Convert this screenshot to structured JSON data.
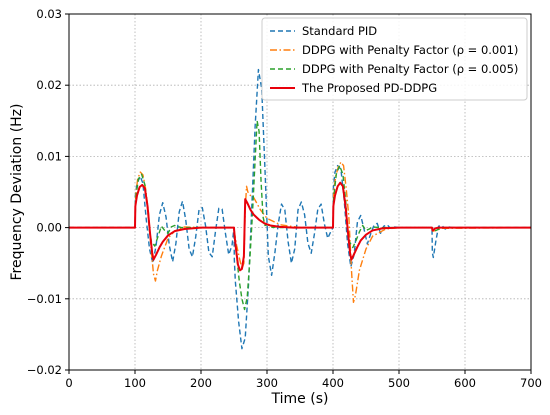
{
  "chart_data": {
    "type": "line",
    "xlabel": "Time (s)",
    "ylabel": "Frequency Deviation (Hz)",
    "xlim": [
      0,
      700
    ],
    "ylim": [
      -0.02,
      0.03
    ],
    "x_ticks": [
      0,
      100,
      200,
      300,
      400,
      500,
      600,
      700
    ],
    "x_tick_labels": [
      "0",
      "100",
      "200",
      "300",
      "400",
      "500",
      "600",
      "700"
    ],
    "y_ticks": [
      -0.02,
      -0.01,
      0.0,
      0.01,
      0.02,
      0.03
    ],
    "y_tick_labels": [
      "−0.02",
      "−0.01",
      "0.00",
      "0.01",
      "0.02",
      "0.03"
    ],
    "grid": true,
    "legend_position": "top-right",
    "series": [
      {
        "name": "Standard PID",
        "color": "#1f77b4",
        "style": "dashed",
        "x": [
          0,
          100,
          100.5,
          103,
          108,
          112,
          117,
          122,
          127,
          132,
          137,
          142,
          147,
          152,
          157,
          162,
          167,
          172,
          177,
          182,
          187,
          192,
          197,
          202,
          207,
          212,
          217,
          222,
          227,
          232,
          237,
          242,
          247,
          250,
          250.5,
          252,
          257,
          262,
          267,
          272,
          277,
          282,
          287,
          292,
          297,
          302,
          307,
          312,
          317,
          322,
          327,
          332,
          337,
          342,
          347,
          352,
          357,
          362,
          367,
          372,
          377,
          382,
          387,
          392,
          397,
          400,
          400.5,
          403,
          407,
          412,
          417,
          422,
          427,
          432,
          437,
          442,
          447,
          452,
          457,
          462,
          467,
          472,
          477,
          482,
          487,
          492,
          500,
          550,
          550.5,
          552,
          556,
          560,
          565,
          570,
          575,
          580,
          585,
          590,
          700
        ],
        "y": [
          0,
          0,
          0.0045,
          0.0062,
          0.0072,
          0.0062,
          0.0012,
          -0.003,
          -0.005,
          -0.0025,
          0.0018,
          0.0035,
          0.0015,
          -0.0025,
          -0.0048,
          -0.0022,
          0.0022,
          0.0037,
          0.001,
          -0.003,
          -0.0041,
          -0.0013,
          0.0025,
          0.0028,
          0.0002,
          -0.0035,
          -0.0041,
          -0.0005,
          0.0027,
          0.0026,
          -0.0008,
          -0.0038,
          -0.0025,
          0,
          -0.0045,
          -0.0075,
          -0.0132,
          -0.017,
          -0.0155,
          -0.008,
          0.003,
          0.0142,
          0.0222,
          0.0195,
          0.008,
          -0.004,
          -0.0067,
          -0.0035,
          0.0005,
          0.0033,
          0.0025,
          -0.002,
          -0.005,
          -0.003,
          0.0025,
          0.0036,
          0.0018,
          -0.0022,
          -0.0036,
          -0.0008,
          0.0026,
          0.0033,
          0.0005,
          -0.0015,
          -0.0005,
          0,
          0.0055,
          0.0078,
          0.0087,
          0.0082,
          0.0038,
          -0.0022,
          -0.0055,
          -0.0038,
          0.0008,
          0.0017,
          -0.0002,
          -0.0023,
          -0.0009,
          0.0003,
          0.0006,
          -0.0008,
          0.0002,
          0.0004,
          -0.0001,
          0.0001,
          0,
          0,
          -0.0035,
          -0.0042,
          -0.0018,
          0.0002,
          0.0003,
          -0.0002,
          0.0001,
          0,
          0,
          0,
          0
        ]
      },
      {
        "name": "DDPG with Penalty Factor (ρ = 0.001)",
        "color": "#ff7f0e",
        "style": "dashdot",
        "x": [
          0,
          100,
          101,
          104,
          108,
          112,
          116,
          120,
          124,
          128,
          131,
          134,
          140,
          150,
          160,
          175,
          200,
          250,
          251,
          254,
          258,
          262,
          265,
          267,
          269,
          271,
          275,
          280,
          290,
          300,
          320,
          350,
          400,
          401,
          404,
          408,
          412,
          416,
          420,
          424,
          428,
          431,
          434,
          440,
          450,
          460,
          480,
          500,
          550,
          551,
          556,
          565,
          700
        ],
        "y": [
          0,
          0,
          0.0045,
          0.0068,
          0.0078,
          0.0074,
          0.0055,
          0.0025,
          -0.0025,
          -0.0065,
          -0.0075,
          -0.006,
          -0.004,
          -0.0015,
          -0.0005,
          0.0001,
          0,
          0,
          -0.0008,
          -0.0025,
          -0.0042,
          -0.0058,
          -0.005,
          0.0025,
          0.0058,
          0.005,
          0.0045,
          0.0042,
          0.0025,
          0.0013,
          0.0004,
          0,
          0,
          0.005,
          0.0072,
          0.0085,
          0.0092,
          0.0087,
          0.0055,
          0.0015,
          -0.006,
          -0.0105,
          -0.0095,
          -0.006,
          -0.003,
          -0.0012,
          -0.0002,
          0,
          0,
          -0.0005,
          -0.0004,
          -0.0001,
          0
        ]
      },
      {
        "name": "DDPG with Penalty Factor (ρ = 0.005)",
        "color": "#2ca02c",
        "style": "dashed",
        "x": [
          0,
          100,
          101,
          105,
          110,
          115,
          119,
          122,
          125,
          130,
          135,
          140,
          145,
          150,
          155,
          160,
          170,
          200,
          250,
          251,
          254,
          258,
          262,
          266,
          270,
          274,
          278,
          282,
          285,
          288,
          291,
          294,
          297,
          301,
          305,
          310,
          315,
          320,
          330,
          345,
          360,
          400,
          401,
          405,
          410,
          415,
          419,
          422,
          425,
          430,
          435,
          440,
          445,
          450,
          455,
          460,
          470,
          500,
          550,
          551,
          556,
          565,
          700
        ],
        "y": [
          0,
          0,
          0.004,
          0.0068,
          0.0075,
          0.006,
          0.0028,
          -0.0005,
          -0.002,
          -0.0026,
          -0.0012,
          0.0002,
          -0.0004,
          -0.0008,
          0.0001,
          0.0003,
          0,
          0,
          0,
          -0.0015,
          -0.004,
          -0.0075,
          -0.01,
          -0.0115,
          -0.0098,
          -0.0045,
          0.002,
          0.0095,
          0.015,
          0.0135,
          0.0065,
          0.0015,
          0.0003,
          0.0004,
          0.0001,
          0,
          0.0002,
          0,
          0,
          0,
          0,
          0,
          0.0042,
          0.0075,
          0.0087,
          0.0075,
          0.004,
          0,
          -0.002,
          -0.0028,
          -0.0018,
          -0.0006,
          0.0003,
          -0.0004,
          -0.0002,
          0.0001,
          0,
          0,
          0,
          -0.0005,
          -0.0004,
          0,
          0
        ]
      },
      {
        "name": "The Proposed PD-DDPG",
        "color": "#e8000b",
        "style": "solid",
        "x": [
          0,
          100,
          100.5,
          103,
          107,
          111,
          115,
          119,
          123,
          126,
          128,
          132,
          137,
          142,
          150,
          160,
          175,
          200,
          250,
          250.5,
          253,
          256,
          259,
          262,
          265,
          267,
          270,
          275,
          280,
          288,
          296,
          305,
          320,
          340,
          360,
          400,
          400.5,
          403,
          407,
          411,
          415,
          419,
          423,
          426,
          428,
          432,
          437,
          442,
          450,
          460,
          475,
          500,
          550,
          550.5,
          551,
          555,
          560,
          700
        ],
        "y": [
          0,
          0,
          0.003,
          0.0045,
          0.0057,
          0.006,
          0.0055,
          0.003,
          -0.001,
          -0.0035,
          -0.0045,
          -0.0038,
          -0.0028,
          -0.002,
          -0.0011,
          -0.0005,
          -0.0002,
          0,
          0,
          -0.0008,
          -0.003,
          -0.0052,
          -0.006,
          -0.0058,
          -0.004,
          0.004,
          0.0035,
          0.0025,
          0.0018,
          0.0011,
          0.0006,
          0.0003,
          0.0001,
          0,
          0,
          0,
          0.003,
          0.0045,
          0.0058,
          0.0063,
          0.0058,
          0.003,
          -0.001,
          -0.0037,
          -0.0045,
          -0.0037,
          -0.0027,
          -0.0018,
          -0.001,
          -0.0004,
          -0.0001,
          0,
          0,
          -0.0003,
          -0.0004,
          -0.0001,
          0,
          0
        ]
      }
    ]
  }
}
